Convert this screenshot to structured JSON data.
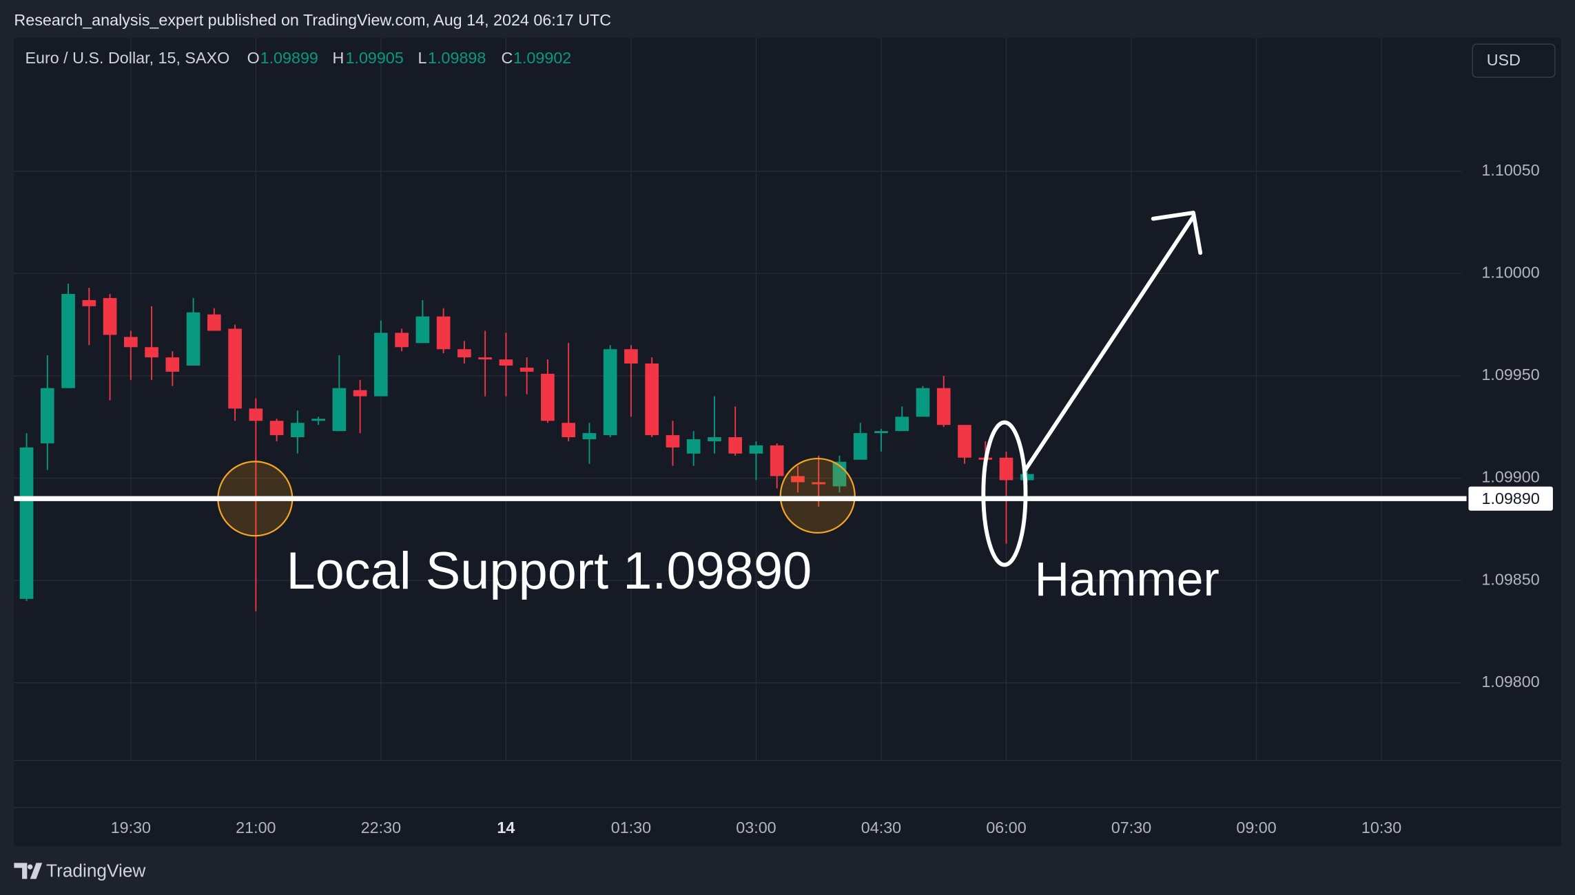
{
  "header": {
    "publisher": "Research_analysis_expert published on TradingView.com, Aug 14, 2024 06:17 UTC",
    "symbol": "Euro / U.S. Dollar, 15, SAXO",
    "ohlc_labels": [
      "O",
      "H",
      "L",
      "C"
    ],
    "currency": "USD",
    "footer": "TradingView"
  },
  "chart_data": {
    "type": "candlestick",
    "up_color": "#089981",
    "down_color": "#f23645",
    "grid": true,
    "x": [
      18.25,
      18.5,
      18.75,
      19,
      19.25,
      19.5,
      19.75,
      20,
      20.25,
      20.5,
      20.75,
      21,
      21.25,
      21.5,
      21.75,
      22,
      22.25,
      22.5,
      22.75,
      23,
      23.25,
      23.5,
      23.75,
      24,
      24.25,
      24.5,
      24.75,
      25,
      25.25,
      25.5,
      25.75,
      26,
      26.25,
      26.5,
      26.75,
      27,
      27.25,
      27.5,
      27.75,
      28,
      28.25,
      28.5,
      28.75,
      29,
      29.25,
      29.5,
      29.75,
      30,
      30.25
    ],
    "open": [
      1.09841,
      1.09917,
      1.09944,
      1.09987,
      1.09988,
      1.09969,
      1.09964,
      1.09959,
      1.09955,
      1.0998,
      1.09973,
      1.09934,
      1.09928,
      1.0992,
      1.09928,
      1.09923,
      1.09943,
      1.0994,
      1.09971,
      1.09966,
      1.09979,
      1.09963,
      1.09959,
      1.09958,
      1.09954,
      1.09951,
      1.09927,
      1.09919,
      1.09921,
      1.09963,
      1.09956,
      1.09921,
      1.09912,
      1.09918,
      1.0992,
      1.09912,
      1.09916,
      1.09901,
      1.09898,
      1.09896,
      1.09909,
      1.09922,
      1.09923,
      1.0993,
      1.09944,
      1.09926,
      1.0991,
      1.0991,
      1.09899
    ],
    "high": [
      1.09922,
      1.0996,
      1.09995,
      1.09993,
      1.0999,
      1.09972,
      1.09984,
      1.09962,
      1.09988,
      1.09983,
      1.09975,
      1.09939,
      1.09929,
      1.09933,
      1.0993,
      1.0996,
      1.09948,
      1.09977,
      1.09973,
      1.09987,
      1.09983,
      1.09967,
      1.09972,
      1.09971,
      1.09959,
      1.09958,
      1.09966,
      1.09927,
      1.09965,
      1.09965,
      1.09959,
      1.09928,
      1.09923,
      1.0994,
      1.09935,
      1.09918,
      1.09917,
      1.09906,
      1.09911,
      1.09911,
      1.09927,
      1.09924,
      1.09935,
      1.09945,
      1.0995,
      1.09926,
      1.09918,
      1.09913,
      1.09905
    ],
    "low": [
      1.0984,
      1.09904,
      1.09944,
      1.09965,
      1.09938,
      1.09948,
      1.09948,
      1.09945,
      1.09955,
      1.09972,
      1.09928,
      1.09835,
      1.09918,
      1.09912,
      1.09926,
      1.09923,
      1.09922,
      1.0994,
      1.09962,
      1.09966,
      1.09961,
      1.09956,
      1.0994,
      1.0994,
      1.09941,
      1.09927,
      1.09918,
      1.09907,
      1.0992,
      1.0993,
      1.0992,
      1.09906,
      1.09906,
      1.09912,
      1.09911,
      1.09899,
      1.09895,
      1.09893,
      1.09886,
      1.09893,
      1.09909,
      1.09913,
      1.09923,
      1.0993,
      1.09925,
      1.09907,
      1.09907,
      1.09868,
      1.09898
    ],
    "close": [
      1.09915,
      1.09944,
      1.0999,
      1.09984,
      1.0997,
      1.09964,
      1.09959,
      1.09952,
      1.09981,
      1.09972,
      1.09934,
      1.09928,
      1.09921,
      1.09927,
      1.09929,
      1.09944,
      1.0994,
      1.09971,
      1.09964,
      1.09979,
      1.09963,
      1.09959,
      1.09958,
      1.09955,
      1.09952,
      1.09928,
      1.0992,
      1.09922,
      1.09963,
      1.09956,
      1.09921,
      1.09915,
      1.09919,
      1.0992,
      1.09912,
      1.09916,
      1.09901,
      1.09898,
      1.09897,
      1.09908,
      1.09922,
      1.09923,
      1.0993,
      1.09944,
      1.09926,
      1.0991,
      1.09909,
      1.09899,
      1.09902
    ],
    "xlim": [
      18.1,
      35.46
    ],
    "xticks": [
      {
        "value": 19.5,
        "label": "19:30"
      },
      {
        "value": 21,
        "label": "21:00"
      },
      {
        "value": 22.5,
        "label": "22:30"
      },
      {
        "value": 24,
        "label": "14"
      },
      {
        "value": 25.5,
        "label": "01:30"
      },
      {
        "value": 27,
        "label": "03:00"
      },
      {
        "value": 28.5,
        "label": "04:30"
      },
      {
        "value": 30,
        "label": "06:00"
      },
      {
        "value": 31.5,
        "label": "07:30"
      },
      {
        "value": 33,
        "label": "09:00"
      },
      {
        "value": 34.5,
        "label": "10:30"
      }
    ],
    "ylim": [
      1.09762,
      1.10115
    ],
    "yticks": [
      {
        "value": 1.098,
        "label": "1.09800"
      },
      {
        "value": 1.0985,
        "label": "1.09850"
      },
      {
        "value": 1.099,
        "label": "1.09900"
      },
      {
        "value": 1.0995,
        "label": "1.09950"
      },
      {
        "value": 1.1,
        "label": "1.10000"
      },
      {
        "value": 1.1005,
        "label": "1.10050"
      }
    ],
    "support_line": {
      "value": 1.0989,
      "label": "1.09890"
    },
    "annotations": [
      "Local Support 1.09890",
      "Hammer"
    ]
  }
}
